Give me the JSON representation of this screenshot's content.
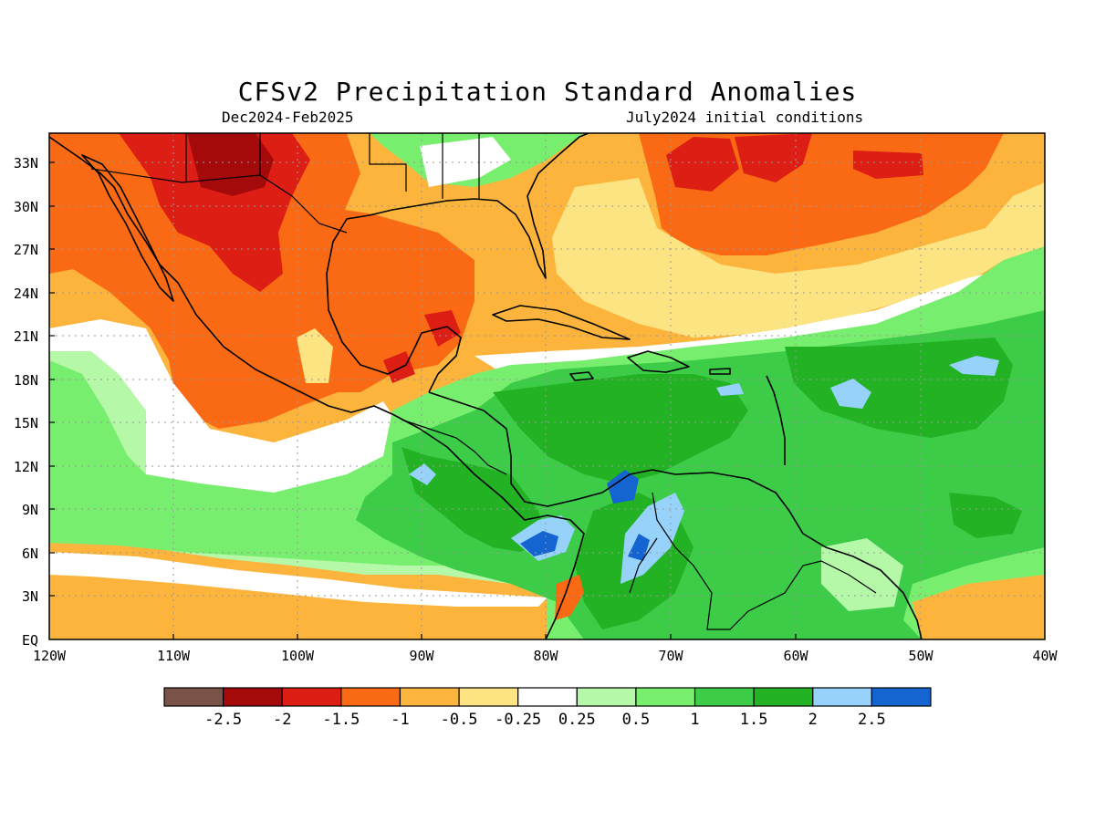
{
  "title": "CFSv2 Precipitation Standard Anomalies",
  "period": "Dec2024-Feb2025",
  "init": "July2024 initial conditions",
  "lat_labels": [
    "33N",
    "30N",
    "27N",
    "24N",
    "21N",
    "18N",
    "15N",
    "12N",
    "9N",
    "6N",
    "3N",
    "EQ"
  ],
  "lon_labels": [
    "120W",
    "110W",
    "100W",
    "90W",
    "80W",
    "70W",
    "60W",
    "50W",
    "40W"
  ],
  "colorbar": {
    "colors": [
      "#7a5348",
      "#a40a0a",
      "#dc1e14",
      "#fa6a14",
      "#fcb43c",
      "#fde482",
      "#ffffff",
      "#b4f8a8",
      "#78ee6e",
      "#3ccc48",
      "#22b224",
      "#96d2fa",
      "#1464d2"
    ],
    "labels": [
      "-2.5",
      "-2",
      "-1.5",
      "-1",
      "-0.5",
      "-0.25",
      "0.25",
      "0.5",
      "1",
      "1.5",
      "2",
      "2.5"
    ]
  }
}
